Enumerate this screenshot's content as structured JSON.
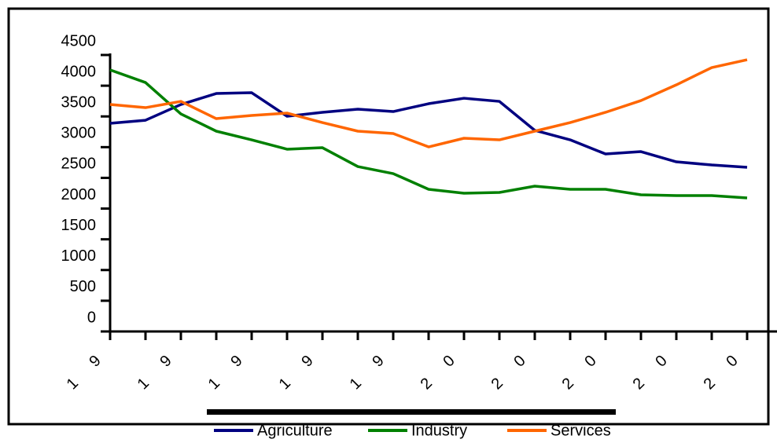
{
  "chart_data": {
    "type": "line",
    "categories": [
      "1 9",
      null,
      "1 9",
      null,
      "1 9",
      null,
      "1 9",
      null,
      "1 9",
      null,
      "2 0",
      null,
      "2 0",
      null,
      "2 0",
      null,
      "2 0",
      null,
      "2 0"
    ],
    "series": [
      {
        "name": "Agriculture",
        "color": "#000080",
        "values": [
          3388,
          3438,
          3694,
          3873,
          3886,
          3503,
          3567,
          3618,
          3579,
          3707,
          3796,
          3745,
          3273,
          3119,
          2889,
          2927,
          2761,
          2710,
          2672
        ]
      },
      {
        "name": "Industry",
        "color": "#008000",
        "values": [
          4257,
          4052,
          3541,
          3260,
          3119,
          2966,
          2991,
          2684,
          2569,
          2314,
          2250,
          2263,
          2365,
          2314,
          2314,
          2224,
          2211,
          2211,
          2173
        ]
      },
      {
        "name": "Services",
        "color": "#ff6600",
        "values": [
          3694,
          3643,
          3745,
          3464,
          3515,
          3554,
          3400,
          3260,
          3221,
          3004,
          3145,
          3119,
          3260,
          3400,
          3567,
          3758,
          4014,
          4295,
          4423
        ]
      }
    ],
    "ylim": [
      0,
      4500
    ],
    "yticks": [
      0,
      500,
      1000,
      1500,
      2000,
      2500,
      3000,
      3500,
      4000,
      4500
    ],
    "legend": "bottom"
  }
}
